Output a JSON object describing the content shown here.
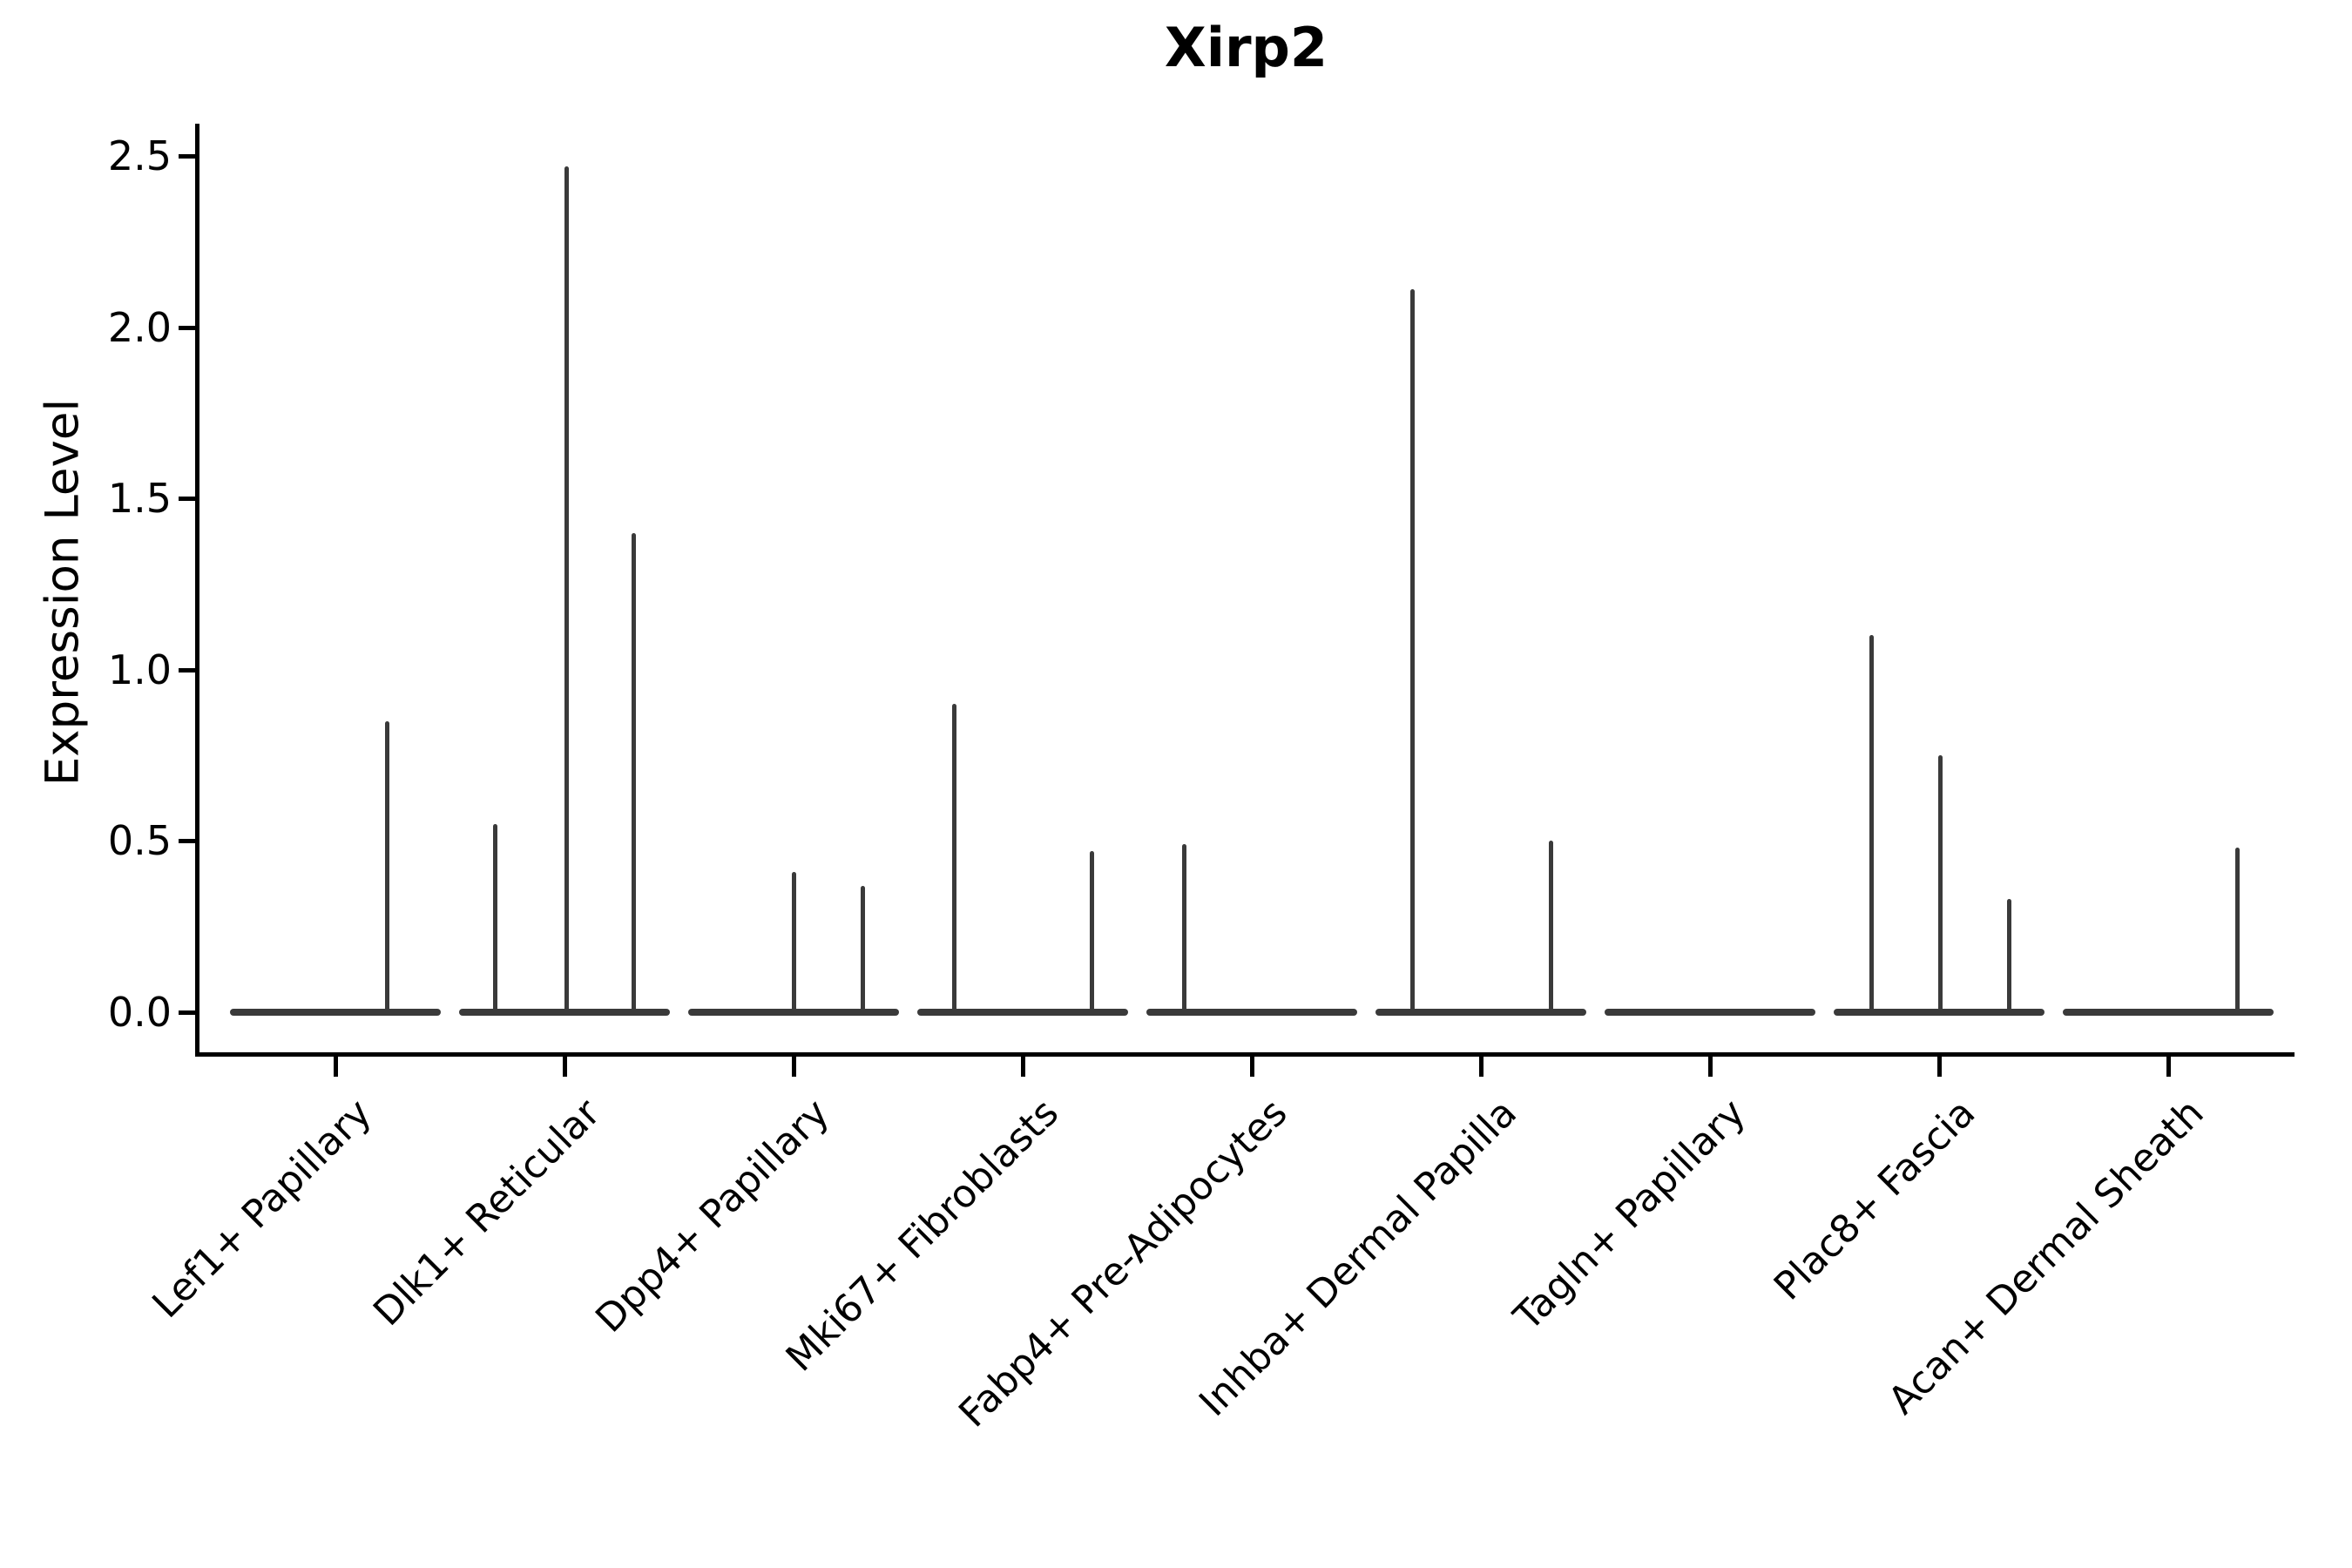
{
  "chart_data": {
    "type": "violin",
    "title": "Xirp2",
    "ylabel": "Expression Level",
    "xlabel": "",
    "ylim": [
      -0.12,
      2.59
    ],
    "yticks": [
      0.0,
      0.5,
      1.0,
      1.5,
      2.0,
      2.5
    ],
    "ytick_labels": [
      "0.0",
      "0.5",
      "1.0",
      "1.5",
      "2.0",
      "2.5"
    ],
    "grid": false,
    "legend": "none",
    "categories": [
      "Lef1+ Papillary",
      "Dlk1+ Reticular",
      "Dpp4+ Papillary",
      "Mki67+ Fibroblasts",
      "Fabp4+ Pre-Adipocytes",
      "Inhba+ Dermal Papilla",
      "Tagln+ Papillary",
      "Plac8+ Fascia",
      "Acan+ Dermal Sheath"
    ],
    "series": [
      {
        "name": "Lef1+ Papillary",
        "body_value": 0.0,
        "spikes": [
          {
            "offset": 59,
            "value": 0.85
          }
        ]
      },
      {
        "name": "Dlk1+ Reticular",
        "body_value": 0.0,
        "spikes": [
          {
            "offset": -80,
            "value": 0.55
          },
          {
            "offset": 2,
            "value": 2.47
          },
          {
            "offset": 79,
            "value": 1.4
          }
        ]
      },
      {
        "name": "Dpp4+ Papillary",
        "body_value": 0.0,
        "spikes": [
          {
            "offset": 0,
            "value": 0.41
          },
          {
            "offset": 79,
            "value": 0.37
          }
        ]
      },
      {
        "name": "Mki67+ Fibroblasts",
        "body_value": 0.0,
        "spikes": [
          {
            "offset": -79,
            "value": 0.9
          },
          {
            "offset": 79,
            "value": 0.47
          }
        ]
      },
      {
        "name": "Fabp4+ Pre-Adipocytes",
        "body_value": 0.0,
        "spikes": [
          {
            "offset": -78,
            "value": 0.49
          }
        ]
      },
      {
        "name": "Inhba+ Dermal Papilla",
        "body_value": 0.0,
        "spikes": [
          {
            "offset": -79,
            "value": 2.11
          },
          {
            "offset": 80,
            "value": 0.5
          }
        ]
      },
      {
        "name": "Tagln+ Papillary",
        "body_value": 0.0,
        "spikes": []
      },
      {
        "name": "Plac8+ Fascia",
        "body_value": 0.0,
        "spikes": [
          {
            "offset": -78,
            "value": 1.1
          },
          {
            "offset": 1,
            "value": 0.75
          },
          {
            "offset": 80,
            "value": 0.33
          }
        ]
      },
      {
        "name": "Acan+ Dermal Sheath",
        "body_value": 0.0,
        "spikes": [
          {
            "offset": 79,
            "value": 0.48
          }
        ]
      }
    ],
    "colors": {
      "ink": "#000000",
      "violin": "#3a3a3a",
      "background": "#ffffff"
    }
  }
}
